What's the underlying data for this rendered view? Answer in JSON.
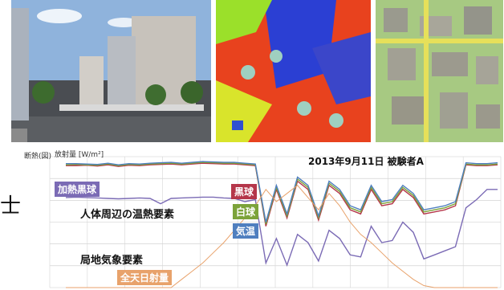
{
  "side_char": "士",
  "axes": {
    "left_tag": "断熱(図)",
    "ylabel": "放射量 [W/m²]"
  },
  "chart_data": {
    "type": "line",
    "title": "2013年9月11日 被験者A",
    "xlabel": "",
    "ylabel": "放射量 [W/m²]",
    "grid": true,
    "annotations": {
      "heat_group": "人体周辺の温熱要素",
      "local_group": "局地気象要素"
    },
    "series": [
      {
        "name": "加熱黒球",
        "color": "#7b6bb5",
        "values": [
          220,
          221,
          220,
          219,
          218,
          217,
          218,
          219,
          218,
          205,
          218,
          219,
          220,
          221,
          221,
          219,
          218,
          210,
          215,
          60,
          120,
          55,
          130,
          110,
          65,
          140,
          120,
          80,
          75,
          150,
          110,
          115,
          160,
          135,
          70,
          80,
          90,
          100,
          195,
          215,
          240,
          240
        ]
      },
      {
        "name": "黒球",
        "color": "#b5364a",
        "values": [
          298,
          298,
          299,
          297,
          300,
          296,
          299,
          298,
          300,
          301,
          302,
          300,
          302,
          304,
          303,
          302,
          302,
          300,
          298,
          150,
          240,
          170,
          260,
          240,
          165,
          250,
          230,
          190,
          180,
          240,
          200,
          205,
          240,
          220,
          180,
          185,
          190,
          200,
          300,
          298,
          298,
          300
        ]
      },
      {
        "name": "白球",
        "color": "#7ca33a",
        "values": [
          300,
          301,
          300,
          299,
          302,
          298,
          301,
          300,
          302,
          303,
          304,
          302,
          304,
          306,
          305,
          304,
          304,
          302,
          300,
          155,
          245,
          175,
          265,
          245,
          170,
          255,
          235,
          195,
          185,
          245,
          205,
          210,
          245,
          225,
          185,
          190,
          195,
          205,
          302,
          300,
          300,
          302
        ]
      },
      {
        "name": "気温",
        "color": "#4f7fbf",
        "values": [
          303,
          303,
          302,
          301,
          304,
          300,
          303,
          302,
          304,
          305,
          306,
          304,
          306,
          308,
          307,
          306,
          306,
          304,
          302,
          160,
          250,
          180,
          270,
          250,
          175,
          260,
          240,
          200,
          190,
          250,
          210,
          215,
          250,
          230,
          190,
          195,
          200,
          210,
          305,
          303,
          303,
          305
        ]
      },
      {
        "name": "全天日射量",
        "color": "#e8a26b",
        "values": [
          0,
          0,
          0,
          0,
          0,
          0,
          0,
          0,
          0,
          0,
          0,
          20,
          40,
          60,
          85,
          110,
          140,
          170,
          200,
          240,
          210,
          230,
          250,
          220,
          190,
          230,
          200,
          160,
          130,
          110,
          85,
          60,
          40,
          20,
          5,
          0,
          0,
          0,
          0,
          0,
          0,
          0
        ]
      }
    ]
  }
}
